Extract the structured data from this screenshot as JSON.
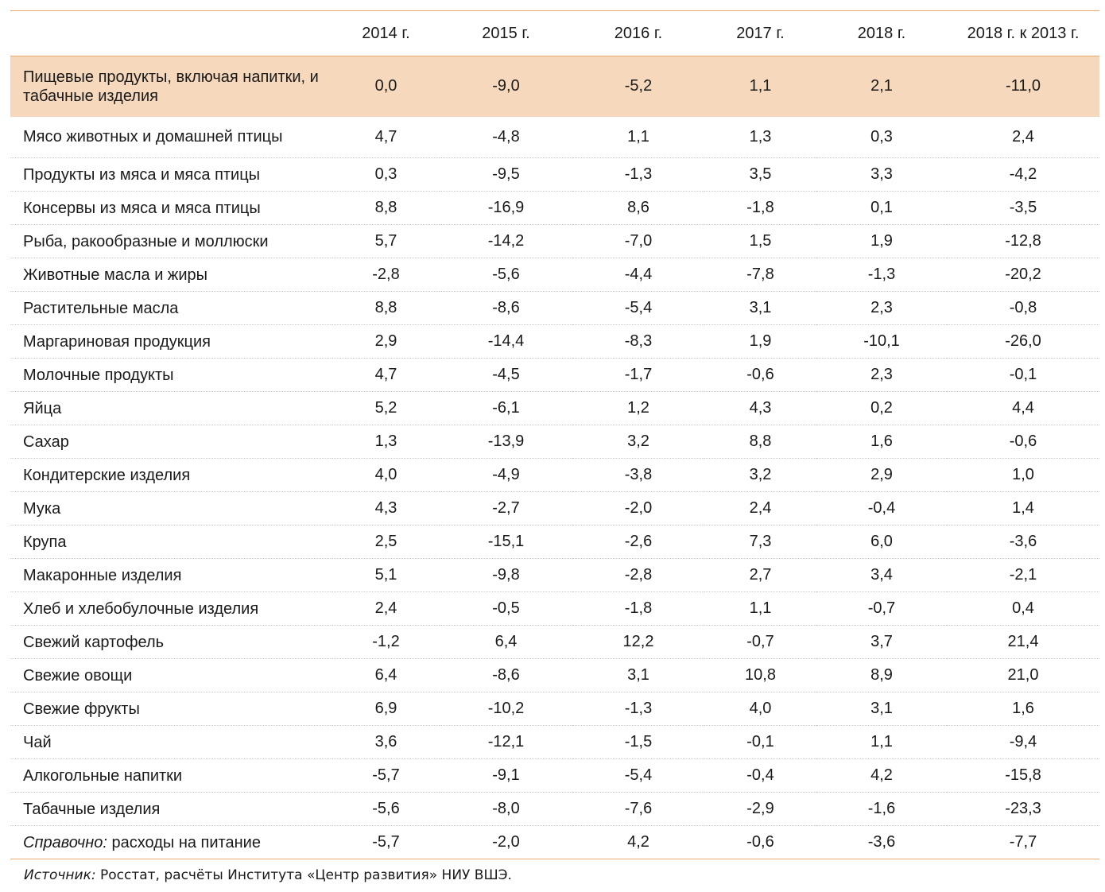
{
  "table": {
    "headers": [
      "",
      "2014 г.",
      "2015 г.",
      "2016 г.",
      "2017 г.",
      "2018 г.",
      "2018 г. к 2013 г."
    ],
    "highlight_color": "#f6d8bc",
    "rule_color": "#e8a96f",
    "rows": [
      {
        "label": "Пищевые продукты, включая напитки, и табачные изделия",
        "values": [
          "0,0",
          "-9,0",
          "-5,2",
          "1,1",
          "2,1",
          "-11,0"
        ]
      },
      {
        "label": "Мясо животных и домашней птицы",
        "values": [
          "4,7",
          "-4,8",
          "1,1",
          "1,3",
          "0,3",
          "2,4"
        ]
      },
      {
        "label": "Продукты из мяса и мяса птицы",
        "values": [
          "0,3",
          "-9,5",
          "-1,3",
          "3,5",
          "3,3",
          "-4,2"
        ]
      },
      {
        "label": "Консервы из мяса и мяса птицы",
        "values": [
          "8,8",
          "-16,9",
          "8,6",
          "-1,8",
          "0,1",
          "-3,5"
        ]
      },
      {
        "label": "Рыба, ракообразные и моллюски",
        "values": [
          "5,7",
          "-14,2",
          "-7,0",
          "1,5",
          "1,9",
          "-12,8"
        ]
      },
      {
        "label": "Животные масла и жиры",
        "values": [
          "-2,8",
          "-5,6",
          "-4,4",
          "-7,8",
          "-1,3",
          "-20,2"
        ]
      },
      {
        "label": "Растительные масла",
        "values": [
          "8,8",
          "-8,6",
          "-5,4",
          "3,1",
          "2,3",
          "-0,8"
        ]
      },
      {
        "label": "Маргариновая продукция",
        "values": [
          "2,9",
          "-14,4",
          "-8,3",
          "1,9",
          "-10,1",
          "-26,0"
        ]
      },
      {
        "label": "Молочные продукты",
        "values": [
          "4,7",
          "-4,5",
          "-1,7",
          "-0,6",
          "2,3",
          "-0,1"
        ]
      },
      {
        "label": "Яйца",
        "values": [
          "5,2",
          "-6,1",
          "1,2",
          "4,3",
          "0,2",
          "4,4"
        ]
      },
      {
        "label": "Сахар",
        "values": [
          "1,3",
          "-13,9",
          "3,2",
          "8,8",
          "1,6",
          "-0,6"
        ]
      },
      {
        "label": "Кондитерские изделия",
        "values": [
          "4,0",
          "-4,9",
          "-3,8",
          "3,2",
          "2,9",
          "1,0"
        ]
      },
      {
        "label": "Мука",
        "values": [
          "4,3",
          "-2,7",
          "-2,0",
          "2,4",
          "-0,4",
          "1,4"
        ]
      },
      {
        "label": "Крупа",
        "values": [
          "2,5",
          "-15,1",
          "-2,6",
          "7,3",
          "6,0",
          "-3,6"
        ]
      },
      {
        "label": "Макаронные изделия",
        "values": [
          "5,1",
          "-9,8",
          "-2,8",
          "2,7",
          "3,4",
          "-2,1"
        ]
      },
      {
        "label": "Хлеб и хлебобулочные изделия",
        "values": [
          "2,4",
          "-0,5",
          "-1,8",
          "1,1",
          "-0,7",
          "0,4"
        ]
      },
      {
        "label": "Свежий картофель",
        "values": [
          "-1,2",
          "6,4",
          "12,2",
          "-0,7",
          "3,7",
          "21,4"
        ]
      },
      {
        "label": "Свежие овощи",
        "values": [
          "6,4",
          "-8,6",
          "3,1",
          "10,8",
          "8,9",
          "21,0"
        ]
      },
      {
        "label": "Свежие фрукты",
        "values": [
          "6,9",
          "-10,2",
          "-1,3",
          "4,0",
          "3,1",
          "1,6"
        ]
      },
      {
        "label": "Чай",
        "values": [
          "3,6",
          "-12,1",
          "-1,5",
          "-0,1",
          "1,1",
          "-9,4"
        ]
      },
      {
        "label": "Алкогольные напитки",
        "values": [
          "-5,7",
          "-9,1",
          "-5,4",
          "-0,4",
          "4,2",
          "-15,8"
        ]
      },
      {
        "label": "Табачные изделия",
        "values": [
          "-5,6",
          "-8,0",
          "-7,6",
          "-2,9",
          "-1,6",
          "-23,3"
        ]
      }
    ],
    "reference_row": {
      "label_italic": "Справочно:",
      "label_rest": " расходы на питание",
      "values": [
        "-5,7",
        "-2,0",
        "4,2",
        "-0,6",
        "-3,6",
        "-7,7"
      ]
    }
  },
  "source": {
    "label_italic": "Источник:",
    "text": " Росстат, расчёты Института «Центр развития» НИУ ВШЭ."
  }
}
